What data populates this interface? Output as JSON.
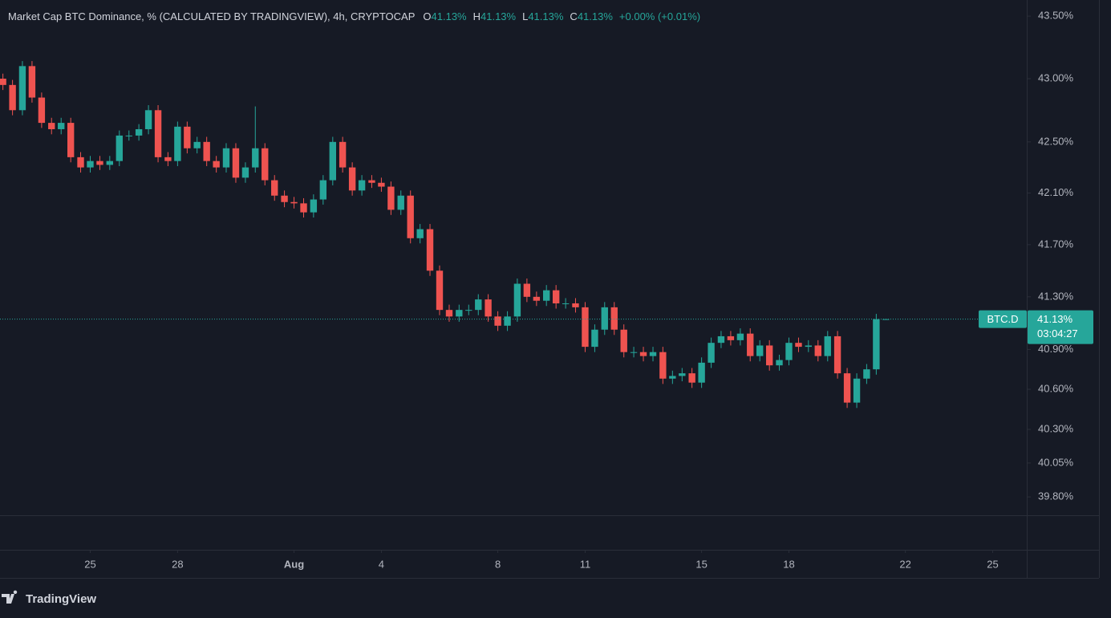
{
  "chart_data": {
    "type": "candlestick",
    "title": "Market Cap BTC Dominance, % (CALCULATED BY TRADINGVIEW), 4h, CRYPTOCAP",
    "ohlc_legend": [
      {
        "key": "O",
        "value": "41.13%"
      },
      {
        "key": "H",
        "value": "41.13%"
      },
      {
        "key": "L",
        "value": "41.13%"
      },
      {
        "key": "C",
        "value": "41.13%"
      }
    ],
    "change": "+0.00% (+0.01%)",
    "price_tag": {
      "symbol": "BTC.D",
      "value": "41.13%",
      "countdown": "03:04:27"
    },
    "log_scale": true,
    "grid": false,
    "up_color": "#26a69a",
    "down_color": "#ef5350",
    "x": [
      22,
      22.33,
      22.67,
      23,
      23.33,
      23.67,
      24,
      24.33,
      24.67,
      25,
      25.33,
      25.67,
      26,
      26.33,
      26.67,
      27,
      27.33,
      27.67,
      28,
      28.33,
      28.67,
      29,
      29.33,
      29.67,
      30,
      30.33,
      30.67,
      31,
      31.33,
      31.67,
      32,
      32.33,
      32.67,
      33,
      33.33,
      33.67,
      34,
      34.33,
      34.67,
      35,
      35.33,
      35.67,
      36,
      36.33,
      36.67,
      37,
      37.33,
      37.67,
      38,
      38.33,
      38.67,
      39,
      39.33,
      39.67,
      40,
      40.33,
      40.67,
      41,
      41.33,
      41.67,
      42,
      42.33,
      42.67,
      43,
      43.33,
      43.67,
      44,
      44.33,
      44.67,
      45,
      45.33,
      45.67,
      46,
      46.33,
      46.67,
      47,
      47.33,
      47.67,
      48,
      48.33,
      48.67,
      49,
      49.33,
      49.67,
      50,
      50.33,
      50.67,
      51,
      51.33,
      51.67,
      52,
      52.33
    ],
    "open": [
      43.0,
      42.95,
      42.75,
      43.1,
      42.85,
      42.65,
      42.6,
      42.65,
      42.38,
      42.3,
      42.35,
      42.32,
      42.35,
      42.55,
      42.55,
      42.6,
      42.75,
      42.38,
      42.35,
      42.62,
      42.45,
      42.5,
      42.35,
      42.3,
      42.45,
      42.22,
      42.3,
      42.45,
      42.2,
      42.08,
      42.03,
      42.02,
      41.95,
      42.05,
      42.2,
      42.5,
      42.3,
      42.12,
      42.2,
      42.18,
      42.15,
      41.97,
      42.08,
      41.75,
      41.82,
      41.5,
      41.2,
      41.15,
      41.2,
      41.2,
      41.28,
      41.15,
      41.08,
      41.15,
      41.4,
      41.3,
      41.27,
      41.35,
      41.25,
      41.25,
      41.22,
      40.92,
      41.05,
      41.22,
      41.05,
      40.88,
      40.88,
      40.85,
      40.88,
      40.68,
      40.7,
      40.72,
      40.65,
      40.8,
      40.95,
      41.0,
      40.97,
      41.02,
      40.85,
      40.93,
      40.78,
      40.82,
      40.95,
      40.92,
      40.93,
      40.85,
      41.0,
      40.72,
      40.5,
      40.68,
      40.75,
      41.13
    ],
    "high": [
      43.04,
      42.99,
      43.14,
      43.14,
      42.89,
      42.69,
      42.69,
      42.69,
      42.42,
      42.39,
      42.39,
      42.39,
      42.59,
      42.59,
      42.64,
      42.79,
      42.79,
      42.42,
      42.66,
      42.66,
      42.54,
      42.54,
      42.39,
      42.49,
      42.49,
      42.34,
      42.78,
      42.49,
      42.24,
      42.12,
      42.07,
      42.06,
      42.09,
      42.24,
      42.54,
      42.54,
      42.34,
      42.24,
      42.24,
      42.22,
      42.19,
      42.12,
      42.12,
      41.86,
      41.86,
      41.54,
      41.24,
      41.24,
      41.24,
      41.32,
      41.32,
      41.19,
      41.19,
      41.44,
      41.44,
      41.34,
      41.39,
      41.39,
      41.29,
      41.29,
      41.26,
      41.09,
      41.26,
      41.26,
      41.09,
      40.92,
      40.92,
      40.92,
      40.92,
      40.74,
      40.76,
      40.76,
      40.84,
      40.99,
      41.04,
      41.04,
      41.06,
      41.06,
      40.97,
      40.97,
      40.86,
      40.99,
      40.99,
      40.97,
      40.97,
      41.04,
      41.04,
      40.76,
      40.72,
      40.79,
      41.17,
      41.13
    ],
    "low": [
      42.91,
      42.71,
      42.71,
      42.81,
      42.61,
      42.56,
      42.56,
      42.34,
      42.26,
      42.26,
      42.28,
      42.28,
      42.31,
      42.51,
      42.51,
      42.56,
      42.34,
      42.31,
      42.31,
      42.41,
      42.41,
      42.31,
      42.26,
      42.26,
      42.18,
      42.18,
      42.26,
      42.16,
      42.04,
      41.99,
      41.98,
      41.91,
      41.91,
      42.01,
      42.16,
      42.26,
      42.08,
      42.08,
      42.14,
      42.11,
      41.93,
      41.93,
      41.71,
      41.71,
      41.46,
      41.16,
      41.11,
      41.11,
      41.16,
      41.16,
      41.11,
      41.04,
      41.04,
      41.11,
      41.26,
      41.23,
      41.23,
      41.21,
      41.21,
      41.18,
      40.88,
      40.88,
      41.01,
      41.01,
      40.84,
      40.84,
      40.81,
      40.81,
      40.64,
      40.64,
      40.66,
      40.61,
      40.61,
      40.76,
      40.91,
      40.93,
      40.93,
      40.81,
      40.81,
      40.74,
      40.74,
      40.78,
      40.88,
      40.88,
      40.81,
      40.81,
      40.68,
      40.46,
      40.46,
      40.64,
      40.71,
      41.13
    ],
    "close": [
      42.95,
      42.75,
      43.1,
      42.85,
      42.65,
      42.6,
      42.65,
      42.38,
      42.3,
      42.35,
      42.32,
      42.35,
      42.55,
      42.55,
      42.6,
      42.75,
      42.38,
      42.35,
      42.62,
      42.45,
      42.5,
      42.35,
      42.3,
      42.45,
      42.22,
      42.3,
      42.45,
      42.2,
      42.08,
      42.03,
      42.02,
      41.95,
      42.05,
      42.2,
      42.5,
      42.3,
      42.12,
      42.2,
      42.18,
      42.15,
      41.97,
      42.08,
      41.75,
      41.82,
      41.5,
      41.2,
      41.15,
      41.2,
      41.2,
      41.28,
      41.15,
      41.08,
      41.15,
      41.4,
      41.3,
      41.27,
      41.35,
      41.25,
      41.25,
      41.22,
      40.92,
      41.05,
      41.22,
      41.05,
      40.88,
      40.88,
      40.85,
      40.88,
      40.68,
      40.7,
      40.72,
      40.65,
      40.8,
      40.95,
      41.0,
      40.97,
      41.02,
      40.85,
      40.93,
      40.78,
      40.82,
      40.95,
      40.92,
      40.93,
      40.85,
      41.0,
      40.72,
      40.5,
      40.68,
      40.75,
      41.13,
      41.13
    ],
    "xlim": [
      21.9,
      57.17
    ],
    "xticks": [
      25,
      28,
      {
        "value": 32,
        "label": "Aug"
      },
      {
        "value": 35,
        "label": "4"
      },
      {
        "value": 39,
        "label": "8"
      },
      {
        "value": 42,
        "label": "11"
      },
      {
        "value": 46,
        "label": "15"
      },
      {
        "value": 49,
        "label": "18"
      },
      {
        "value": 53,
        "label": "22"
      },
      {
        "value": 56,
        "label": "25"
      }
    ],
    "ylim": [
      39.665,
      43.63
    ],
    "yticks": [
      {
        "value": 43.5,
        "label": "43.50%"
      },
      {
        "value": 43.0,
        "label": "43.00%"
      },
      {
        "value": 42.5,
        "label": "42.50%"
      },
      {
        "value": 42.1,
        "label": "42.10%"
      },
      {
        "value": 41.7,
        "label": "41.70%"
      },
      {
        "value": 41.3,
        "label": "41.30%"
      },
      {
        "value": 40.9,
        "label": "40.90%"
      },
      {
        "value": 40.6,
        "label": "40.60%"
      },
      {
        "value": 40.3,
        "label": "40.30%"
      },
      {
        "value": 40.05,
        "label": "40.05%"
      },
      {
        "value": 39.8,
        "label": "39.80%"
      }
    ]
  },
  "footer": {
    "brand": "TradingView"
  }
}
